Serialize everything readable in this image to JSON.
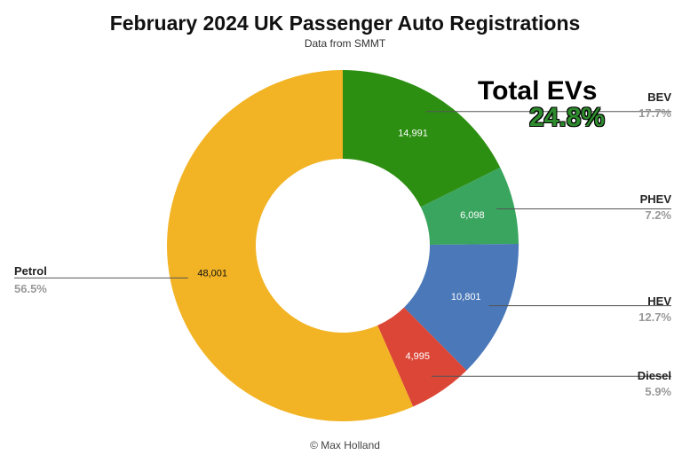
{
  "header": {
    "title": "February 2024 UK Passenger Auto Registrations",
    "subtitle": "Data from SMMT"
  },
  "callout": {
    "label": "Total EVs",
    "value": "24.8%",
    "color": "#2e8b2e"
  },
  "footer": {
    "credit": "© Max Holland"
  },
  "chart_data": {
    "type": "pie",
    "donut": true,
    "title": "February 2024 UK Passenger Auto Registrations",
    "subtitle": "Data from SMMT",
    "legend": "none",
    "slices": [
      {
        "name": "BEV",
        "value": 14991,
        "value_label": "14,991",
        "percent_label": "17.7%",
        "color": "#2d8f12",
        "value_color": "#ffffff"
      },
      {
        "name": "PHEV",
        "value": 6098,
        "value_label": "6,098",
        "percent_label": "7.2%",
        "color": "#3aa55f",
        "value_color": "#ffffff"
      },
      {
        "name": "HEV",
        "value": 10801,
        "value_label": "10,801",
        "percent_label": "12.7%",
        "color": "#4a78b8",
        "value_color": "#ffffff"
      },
      {
        "name": "Diesel",
        "value": 4995,
        "value_label": "4,995",
        "percent_label": "5.9%",
        "color": "#dc4637",
        "value_color": "#ffffff"
      },
      {
        "name": "Petrol",
        "value": 48001,
        "value_label": "48,001",
        "percent_label": "56.5%",
        "color": "#f2b324",
        "value_color": "#111111"
      }
    ]
  }
}
